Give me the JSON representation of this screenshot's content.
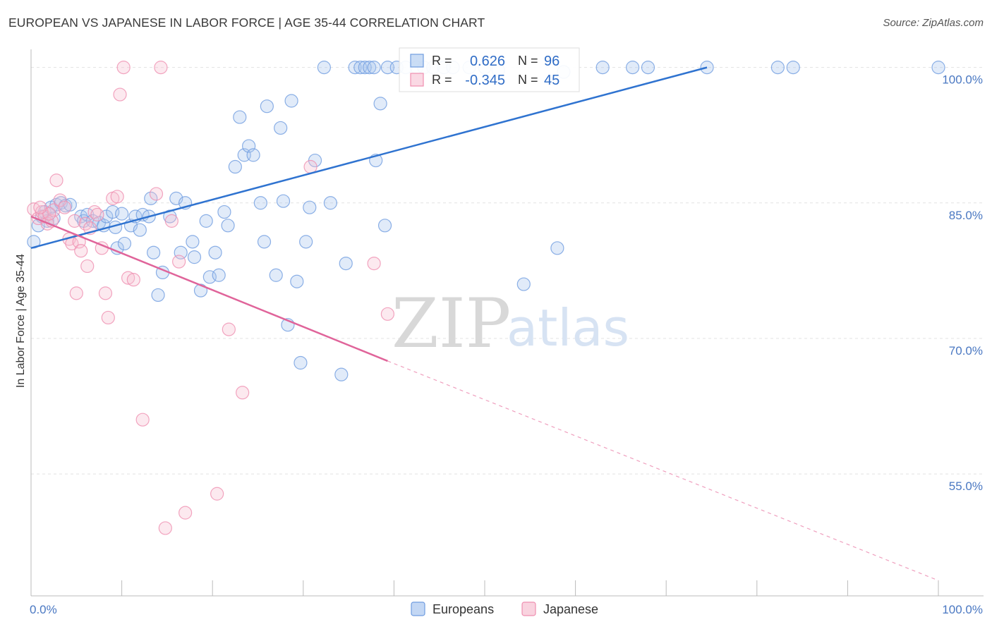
{
  "title": "EUROPEAN VS JAPANESE IN LABOR FORCE | AGE 35-44 CORRELATION CHART",
  "source": "Source: ZipAtlas.com",
  "watermark": {
    "zip": "ZIP",
    "atlas": "atlas"
  },
  "chart_data": {
    "type": "scatter",
    "ylabel": "In Labor Force | Age 35-44",
    "xlim": [
      0,
      100
    ],
    "ylim": [
      41.5,
      102
    ],
    "x_ticks": [
      {
        "value": 0,
        "label": "0.0%"
      },
      {
        "value": 100,
        "label": "100.0%"
      }
    ],
    "y_ticks": [
      {
        "value": 100,
        "label": "100.0%"
      },
      {
        "value": 85,
        "label": "85.0%"
      },
      {
        "value": 70,
        "label": "70.0%"
      },
      {
        "value": 55,
        "label": "55.0%"
      }
    ],
    "grid": true,
    "legend_box": {
      "placement": "top-center",
      "rows": [
        {
          "r_label": "R =",
          "r_value": "0.626",
          "n_label": "N =",
          "n_value": "96",
          "color": "#6f9ce0"
        },
        {
          "r_label": "R =",
          "r_value": "-0.345",
          "n_label": "N =",
          "n_value": "45",
          "color": "#ef8fb0"
        }
      ]
    },
    "series": [
      {
        "name": "Europeans",
        "color": "#6f9ce0",
        "fill": "#a9c6ef",
        "trend": {
          "x0": 0,
          "y0": 80.0,
          "x1": 74.5,
          "y1": 100.0,
          "style": "solid"
        },
        "points": [
          [
            0.3,
            80.7
          ],
          [
            0.8,
            82.5
          ],
          [
            1.2,
            83.5
          ],
          [
            1.5,
            84.0
          ],
          [
            1.8,
            83.0
          ],
          [
            2.2,
            84.5
          ],
          [
            2.5,
            83.3
          ],
          [
            2.8,
            84.8
          ],
          [
            3.3,
            85.0
          ],
          [
            3.8,
            84.7
          ],
          [
            4.3,
            84.8
          ],
          [
            5.5,
            83.5
          ],
          [
            5.8,
            83.0
          ],
          [
            6.2,
            83.7
          ],
          [
            6.8,
            83.0
          ],
          [
            7.5,
            82.8
          ],
          [
            8.0,
            82.5
          ],
          [
            8.3,
            83.5
          ],
          [
            9.0,
            84.0
          ],
          [
            9.3,
            82.3
          ],
          [
            9.5,
            80.0
          ],
          [
            10.0,
            83.8
          ],
          [
            10.3,
            80.5
          ],
          [
            11.0,
            82.5
          ],
          [
            11.5,
            83.5
          ],
          [
            12.0,
            82.0
          ],
          [
            12.3,
            83.7
          ],
          [
            13.0,
            83.5
          ],
          [
            13.2,
            85.5
          ],
          [
            13.5,
            79.5
          ],
          [
            14.0,
            74.8
          ],
          [
            14.5,
            77.3
          ],
          [
            15.3,
            83.5
          ],
          [
            16.0,
            85.5
          ],
          [
            16.5,
            79.5
          ],
          [
            17.0,
            85.0
          ],
          [
            17.8,
            80.7
          ],
          [
            18.0,
            79.0
          ],
          [
            18.7,
            75.3
          ],
          [
            19.3,
            83.0
          ],
          [
            19.7,
            76.8
          ],
          [
            20.3,
            79.5
          ],
          [
            20.7,
            77.0
          ],
          [
            21.3,
            84.0
          ],
          [
            21.7,
            82.5
          ],
          [
            22.5,
            89.0
          ],
          [
            23.0,
            94.5
          ],
          [
            23.5,
            90.3
          ],
          [
            24.0,
            91.3
          ],
          [
            24.5,
            90.3
          ],
          [
            25.3,
            85.0
          ],
          [
            25.7,
            80.7
          ],
          [
            26.0,
            95.7
          ],
          [
            27.0,
            77.0
          ],
          [
            27.5,
            93.3
          ],
          [
            27.8,
            85.2
          ],
          [
            28.3,
            71.5
          ],
          [
            28.7,
            96.3
          ],
          [
            29.3,
            76.3
          ],
          [
            29.7,
            67.3
          ],
          [
            30.3,
            80.7
          ],
          [
            30.7,
            84.5
          ],
          [
            31.3,
            89.7
          ],
          [
            32.3,
            100.0
          ],
          [
            33.0,
            85.0
          ],
          [
            34.2,
            66.0
          ],
          [
            34.7,
            78.3
          ],
          [
            35.7,
            100.0
          ],
          [
            36.3,
            100.0
          ],
          [
            36.8,
            100.0
          ],
          [
            37.3,
            100.0
          ],
          [
            37.8,
            100.0
          ],
          [
            38.0,
            89.7
          ],
          [
            38.5,
            96.0
          ],
          [
            39.0,
            82.5
          ],
          [
            39.3,
            100.0
          ],
          [
            40.3,
            100.0
          ],
          [
            41.3,
            100.0
          ],
          [
            42.5,
            100.0
          ],
          [
            43.3,
            100.0
          ],
          [
            44.3,
            100.0
          ],
          [
            45.5,
            100.0
          ],
          [
            46.5,
            100.0
          ],
          [
            48.3,
            100.0
          ],
          [
            50.0,
            100.0
          ],
          [
            51.5,
            99.7
          ],
          [
            54.3,
            76.0
          ],
          [
            58.0,
            80.0
          ],
          [
            58.7,
            99.5
          ],
          [
            63.0,
            100.0
          ],
          [
            66.3,
            100.0
          ],
          [
            68.0,
            100.0
          ],
          [
            74.5,
            100.0
          ],
          [
            82.3,
            100.0
          ],
          [
            84.0,
            100.0
          ],
          [
            100.0,
            100.0
          ]
        ]
      },
      {
        "name": "Japanese",
        "color": "#ef8fb0",
        "fill": "#f6c0d2",
        "trend": {
          "x0": 0,
          "y0": 83.5,
          "x1": 39.3,
          "y1": 67.5,
          "x_dash_end": 100,
          "y_dash_end": 43.2,
          "style": "solid+dashed"
        },
        "points": [
          [
            0.3,
            84.3
          ],
          [
            0.8,
            83.3
          ],
          [
            1.2,
            84.0
          ],
          [
            1.5,
            83.5
          ],
          [
            1.8,
            82.7
          ],
          [
            2.3,
            83.0
          ],
          [
            2.5,
            84.2
          ],
          [
            2.8,
            87.5
          ],
          [
            3.2,
            85.3
          ],
          [
            3.7,
            84.5
          ],
          [
            4.2,
            81.0
          ],
          [
            4.5,
            80.5
          ],
          [
            4.8,
            83.0
          ],
          [
            5.0,
            75.0
          ],
          [
            5.3,
            80.7
          ],
          [
            5.5,
            79.7
          ],
          [
            6.0,
            82.7
          ],
          [
            6.2,
            78.0
          ],
          [
            6.5,
            82.2
          ],
          [
            7.0,
            84.0
          ],
          [
            7.3,
            83.7
          ],
          [
            7.8,
            80.0
          ],
          [
            8.2,
            75.0
          ],
          [
            8.5,
            72.3
          ],
          [
            9.0,
            85.5
          ],
          [
            9.5,
            85.7
          ],
          [
            9.8,
            97.0
          ],
          [
            10.2,
            100.0
          ],
          [
            10.7,
            76.7
          ],
          [
            11.3,
            76.5
          ],
          [
            12.3,
            61.0
          ],
          [
            13.8,
            86.0
          ],
          [
            14.3,
            100.0
          ],
          [
            14.8,
            49.0
          ],
          [
            15.5,
            83.0
          ],
          [
            16.3,
            78.5
          ],
          [
            17.0,
            50.7
          ],
          [
            20.5,
            52.8
          ],
          [
            21.8,
            71.0
          ],
          [
            23.3,
            64.0
          ],
          [
            30.8,
            89.0
          ],
          [
            37.8,
            78.3
          ],
          [
            39.3,
            72.7
          ],
          [
            2.0,
            83.8
          ],
          [
            1.0,
            84.5
          ]
        ]
      }
    ]
  }
}
